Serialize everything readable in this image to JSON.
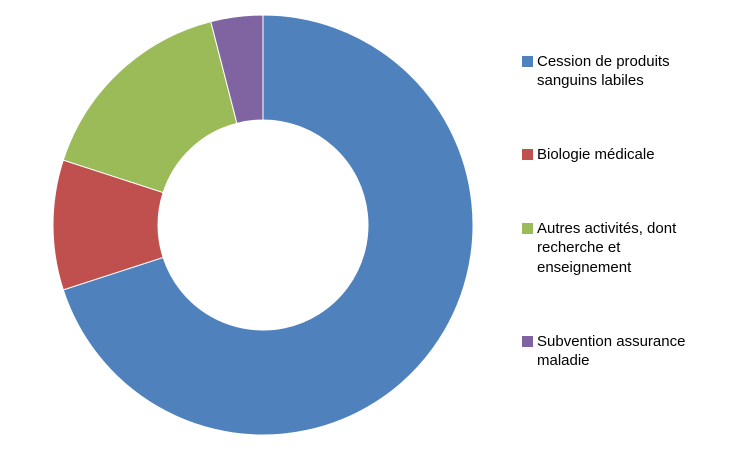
{
  "chart_data": {
    "type": "pie",
    "donut": true,
    "inner_radius_ratio": 0.5,
    "start_angle_deg": 0,
    "direction": "clockwise",
    "legend_position": "right",
    "background_color": "#ffffff",
    "categories": [
      "Cession de produits sanguins labiles",
      "Biologie médicale",
      "Autres activités, dont recherche et enseignement",
      "Subvention assurance maladie"
    ],
    "values": [
      70,
      10,
      16,
      4
    ],
    "colors": [
      "#4F81BD",
      "#C0504D",
      "#9BBB59",
      "#8064A2"
    ]
  }
}
